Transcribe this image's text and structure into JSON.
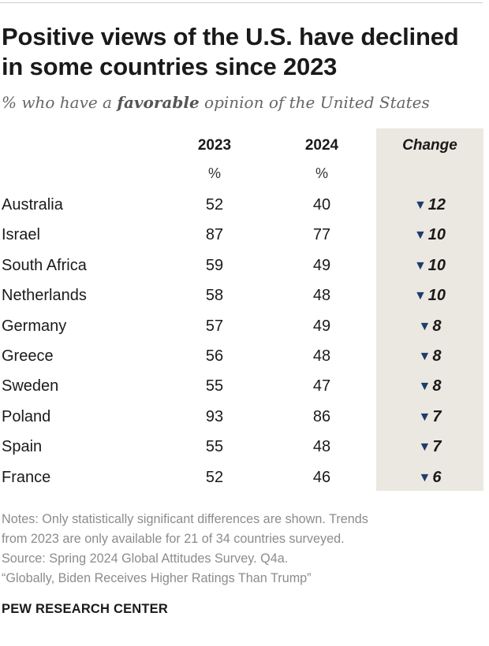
{
  "title": "Positive views of the U.S. have declined in some countries since 2023",
  "subtitle": {
    "prefix": "% who have a ",
    "emphasis": "favorable",
    "suffix": " opinion of the United States"
  },
  "chart_data": {
    "type": "table",
    "columns": [
      "2023",
      "2024",
      "Change"
    ],
    "units_row": [
      "%",
      "%"
    ],
    "rows": [
      {
        "country": "Australia",
        "y2023": "52",
        "y2024": "40",
        "change": "12"
      },
      {
        "country": "Israel",
        "y2023": "87",
        "y2024": "77",
        "change": "10"
      },
      {
        "country": "South Africa",
        "y2023": "59",
        "y2024": "49",
        "change": "10"
      },
      {
        "country": "Netherlands",
        "y2023": "58",
        "y2024": "48",
        "change": "10"
      },
      {
        "country": "Germany",
        "y2023": "57",
        "y2024": "49",
        "change": "8"
      },
      {
        "country": "Greece",
        "y2023": "56",
        "y2024": "48",
        "change": "8"
      },
      {
        "country": "Sweden",
        "y2023": "55",
        "y2024": "47",
        "change": "8"
      },
      {
        "country": "Poland",
        "y2023": "93",
        "y2024": "86",
        "change": "7"
      },
      {
        "country": "Spain",
        "y2023": "55",
        "y2024": "48",
        "change": "7"
      },
      {
        "country": "France",
        "y2023": "52",
        "y2024": "46",
        "change": "6"
      }
    ],
    "change_icon": "down-triangle-icon",
    "change_icon_color": "#1d3d6b",
    "change_column_bg": "#ebe8e1"
  },
  "notes": [
    "Notes: Only statistically significant differences are shown. Trends",
    "from 2023 are only available for 21 of 34 countries surveyed.",
    "Source: Spring 2024 Global Attitudes Survey. Q4a.",
    "“Globally, Biden Receives Higher Ratings Than Trump”"
  ],
  "brand": "PEW RESEARCH CENTER"
}
